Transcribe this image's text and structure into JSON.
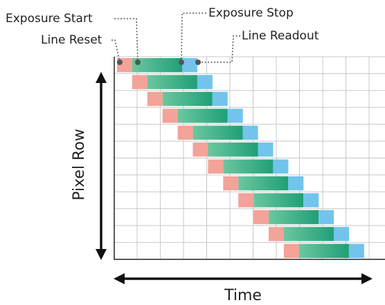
{
  "annotations": {
    "exposure_start": "Exposure Start",
    "exposure_stop": "Exposure Stop",
    "line_reset": "Line Reset",
    "line_readout": "Line Readout"
  },
  "axes": {
    "y_label": "Pixel Row",
    "x_label": "Time"
  },
  "colors": {
    "reset": "#f3a398",
    "exposure_start": "#6bc79f",
    "exposure_end": "#1f9f77",
    "readout": "#72c4ec",
    "grid": "#c8c8c8",
    "ink": "#222222"
  },
  "rows": 12
}
